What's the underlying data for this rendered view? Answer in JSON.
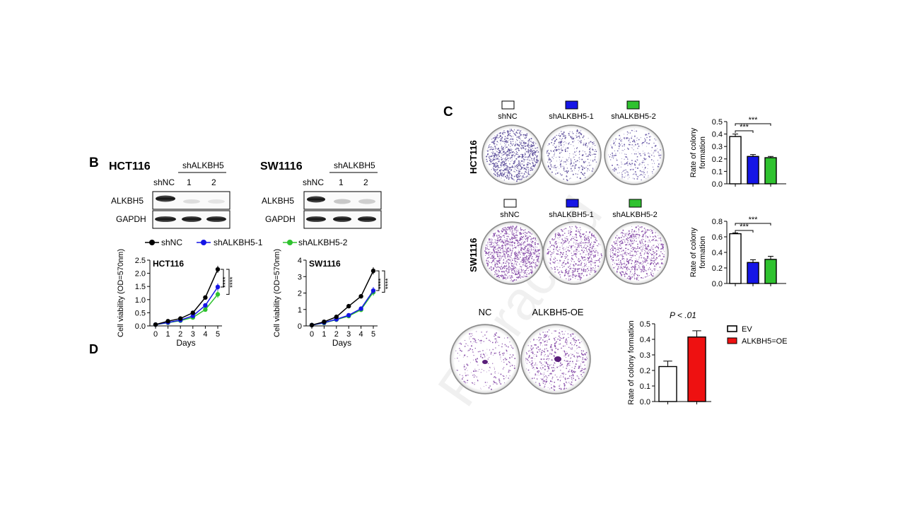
{
  "panels": {
    "b": {
      "letter": "B",
      "cell_lines": [
        "HCT116",
        "SW1116"
      ],
      "group": "shALKBH5",
      "lanes": [
        "shNC",
        "1",
        "2"
      ],
      "rows": [
        "ALKBH5",
        "GAPDH"
      ]
    },
    "c": {
      "letter": "C",
      "samples": [
        "shNC",
        "shALKBH5-1",
        "shALKBH5-2"
      ],
      "cell_lines": [
        "HCT116",
        "SW1116"
      ]
    },
    "d": {
      "letter": "D"
    },
    "oe": {
      "samples": [
        "NC",
        "ALKBH5-OE"
      ]
    }
  },
  "colors": {
    "shNC": "#000000",
    "sh1": "#1515e6",
    "sh2": "#2fc22f",
    "oe": "#ee1111",
    "plate": "#7a3aa0"
  },
  "watermark": "Retracted",
  "chart_data": [
    {
      "type": "line",
      "title": "HCT116",
      "xlabel": "Days",
      "ylabel": "Cell viability (OD=570nm)",
      "x": [
        0,
        1,
        2,
        3,
        4,
        5
      ],
      "ylim": [
        0,
        2.5
      ],
      "yticks": [
        "0.0",
        "0.5",
        "1.0",
        "1.5",
        "2.0",
        "2.5"
      ],
      "series": [
        {
          "name": "shNC",
          "values": [
            0.05,
            0.18,
            0.28,
            0.5,
            1.08,
            2.15
          ]
        },
        {
          "name": "shALKBH5-1",
          "values": [
            0.05,
            0.13,
            0.22,
            0.38,
            0.78,
            1.48
          ]
        },
        {
          "name": "shALKBH5-2",
          "values": [
            0.05,
            0.12,
            0.2,
            0.32,
            0.62,
            1.2
          ]
        }
      ],
      "significance": [
        "****",
        "****"
      ]
    },
    {
      "type": "line",
      "title": "SW1116",
      "xlabel": "Days",
      "ylabel": "Cell viability (OD=570nm)",
      "x": [
        0,
        1,
        2,
        3,
        4,
        5
      ],
      "ylim": [
        0,
        4
      ],
      "yticks": [
        "0",
        "1",
        "2",
        "3",
        "4"
      ],
      "series": [
        {
          "name": "shNC",
          "values": [
            0.05,
            0.25,
            0.55,
            1.2,
            1.8,
            3.35
          ]
        },
        {
          "name": "shALKBH5-1",
          "values": [
            0.05,
            0.2,
            0.4,
            0.65,
            1.05,
            2.15
          ]
        },
        {
          "name": "shALKBH5-2",
          "values": [
            0.05,
            0.18,
            0.38,
            0.6,
            0.98,
            2.05
          ]
        }
      ],
      "significance": [
        "****",
        "****"
      ]
    },
    {
      "type": "bar",
      "ylabel": "Rate of colony formation",
      "categories": [
        "shNC",
        "shALKBH5-1",
        "shALKBH5-2"
      ],
      "values": [
        0.38,
        0.22,
        0.21
      ],
      "errors": [
        0.02,
        0.015,
        0.01
      ],
      "ylim": [
        0,
        0.5
      ],
      "yticks": [
        "0.0",
        "0.1",
        "0.2",
        "0.3",
        "0.4",
        "0.5"
      ],
      "significance": [
        "***",
        "***"
      ]
    },
    {
      "type": "bar",
      "ylabel": "Rate of colony formation",
      "categories": [
        "shNC",
        "shALKBH5-1",
        "shALKBH5-2"
      ],
      "values": [
        0.64,
        0.27,
        0.31
      ],
      "errors": [
        0.01,
        0.035,
        0.04
      ],
      "ylim": [
        0,
        0.8
      ],
      "yticks": [
        "0.0",
        "0.2",
        "0.4",
        "0.6",
        "0.8"
      ],
      "significance": [
        "***",
        "***"
      ]
    },
    {
      "type": "bar",
      "ylabel": "Rate of colony formation",
      "title": "P < .01",
      "categories": [
        "EV",
        "ALKBH5=OE"
      ],
      "values": [
        0.225,
        0.415
      ],
      "errors": [
        0.035,
        0.04
      ],
      "ylim": [
        0,
        0.5
      ],
      "yticks": [
        "0.0",
        "0.1",
        "0.2",
        "0.3",
        "0.4",
        "0.5"
      ],
      "legend": [
        "EV",
        "ALKBH5=OE"
      ],
      "legend_position": "right"
    }
  ]
}
